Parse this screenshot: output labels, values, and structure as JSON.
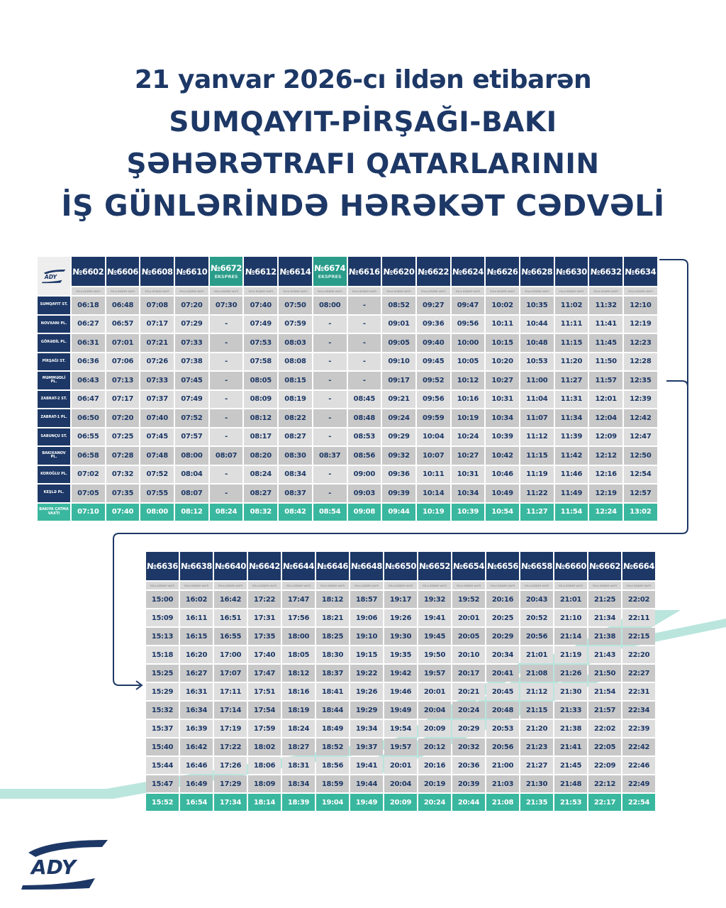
{
  "title": {
    "line1": "21 yanvar 2026-cı ildən etibarən",
    "line2": "SUMQAYIT-PİRŞAĞI-BAKI",
    "line3": "ŞƏHƏRƏTRAFI QATARLARININ",
    "line4": "İŞ GÜNLƏRİNDƏ HƏRƏKƏT CƏDVƏLİ"
  },
  "logo_text": "ADY",
  "colors": {
    "navy": "#1d3866",
    "teal": "#3ab79f",
    "express": "#2a9c8a"
  },
  "subheader": "YOLA DÜŞMƏ VAXTI",
  "express_label": "EKSPRES",
  "stations": [
    "SUMQAYIT ST.",
    "NOVXANI PL.",
    "GÖRƏDİL PL.",
    "PİRŞAĞI ST.",
    "MƏMMƏDLİ PL.",
    "ZABRAT-2 ST.",
    "ZABRAT-1 PL.",
    "SABUNÇU ST.",
    "BAKIXANOV PL.",
    "KOROĞLU PL.",
    "KEŞLƏ PL.",
    "BAKIYA ÇATMA VAXTI"
  ],
  "table1": {
    "trains": [
      {
        "no": "№6602",
        "express": false,
        "times": [
          "06:18",
          "06:27",
          "06:31",
          "06:36",
          "06:43",
          "06:47",
          "06:50",
          "06:55",
          "06:58",
          "07:02",
          "07:05",
          "07:10"
        ]
      },
      {
        "no": "№6606",
        "express": false,
        "times": [
          "06:48",
          "06:57",
          "07:01",
          "07:06",
          "07:13",
          "07:17",
          "07:20",
          "07:25",
          "07:28",
          "07:32",
          "07:35",
          "07:40"
        ]
      },
      {
        "no": "№6608",
        "express": false,
        "times": [
          "07:08",
          "07:17",
          "07:21",
          "07:26",
          "07:33",
          "07:37",
          "07:40",
          "07:45",
          "07:48",
          "07:52",
          "07:55",
          "08:00"
        ]
      },
      {
        "no": "№6610",
        "express": false,
        "times": [
          "07:20",
          "07:29",
          "07:33",
          "07:38",
          "07:45",
          "07:49",
          "07:52",
          "07:57",
          "08:00",
          "08:04",
          "08:07",
          "08:12"
        ]
      },
      {
        "no": "№6672",
        "express": true,
        "times": [
          "07:30",
          "-",
          "-",
          "-",
          "-",
          "-",
          "-",
          "-",
          "08:07",
          "-",
          "-",
          "08:24"
        ]
      },
      {
        "no": "№6612",
        "express": false,
        "times": [
          "07:40",
          "07:49",
          "07:53",
          "07:58",
          "08:05",
          "08:09",
          "08:12",
          "08:17",
          "08:20",
          "08:24",
          "08:27",
          "08:32"
        ]
      },
      {
        "no": "№6614",
        "express": false,
        "times": [
          "07:50",
          "07:59",
          "08:03",
          "08:08",
          "08:15",
          "08:19",
          "08:22",
          "08:27",
          "08:30",
          "08:34",
          "08:37",
          "08:42"
        ]
      },
      {
        "no": "№6674",
        "express": true,
        "times": [
          "08:00",
          "-",
          "-",
          "-",
          "-",
          "-",
          "-",
          "-",
          "08:37",
          "-",
          "-",
          "08:54"
        ]
      },
      {
        "no": "№6616",
        "express": false,
        "times": [
          "-",
          "-",
          "-",
          "-",
          "-",
          "08:45",
          "08:48",
          "08:53",
          "08:56",
          "09:00",
          "09:03",
          "09:08"
        ]
      },
      {
        "no": "№6620",
        "express": false,
        "times": [
          "08:52",
          "09:01",
          "09:05",
          "09:10",
          "09:17",
          "09:21",
          "09:24",
          "09:29",
          "09:32",
          "09:36",
          "09:39",
          "09:44"
        ]
      },
      {
        "no": "№6622",
        "express": false,
        "times": [
          "09:27",
          "09:36",
          "09:40",
          "09:45",
          "09:52",
          "09:56",
          "09:59",
          "10:04",
          "10:07",
          "10:11",
          "10:14",
          "10:19"
        ]
      },
      {
        "no": "№6624",
        "express": false,
        "times": [
          "09:47",
          "09:56",
          "10:00",
          "10:05",
          "10:12",
          "10:16",
          "10:19",
          "10:24",
          "10:27",
          "10:31",
          "10:34",
          "10:39"
        ]
      },
      {
        "no": "№6626",
        "express": false,
        "times": [
          "10:02",
          "10:11",
          "10:15",
          "10:20",
          "10:27",
          "10:31",
          "10:34",
          "10:39",
          "10:42",
          "10:46",
          "10:49",
          "10:54"
        ]
      },
      {
        "no": "№6628",
        "express": false,
        "times": [
          "10:35",
          "10:44",
          "10:48",
          "10:53",
          "11:00",
          "11:04",
          "11:07",
          "11:12",
          "11:15",
          "11:19",
          "11:22",
          "11:27"
        ]
      },
      {
        "no": "№6630",
        "express": false,
        "times": [
          "11:02",
          "11:11",
          "11:15",
          "11:20",
          "11:27",
          "11:31",
          "11:34",
          "11:39",
          "11:42",
          "11:46",
          "11:49",
          "11:54"
        ]
      },
      {
        "no": "№6632",
        "express": false,
        "times": [
          "11:32",
          "11:41",
          "11:45",
          "11:50",
          "11:57",
          "12:01",
          "12:04",
          "12:09",
          "12:12",
          "12:16",
          "12:19",
          "12:24"
        ]
      },
      {
        "no": "№6634",
        "express": false,
        "times": [
          "12:10",
          "12:19",
          "12:23",
          "12:28",
          "12:35",
          "12:39",
          "12:42",
          "12:47",
          "12:50",
          "12:54",
          "12:57",
          "13:02"
        ]
      }
    ]
  },
  "table2": {
    "trains": [
      {
        "no": "№6636",
        "times": [
          "15:00",
          "15:09",
          "15:13",
          "15:18",
          "15:25",
          "15:29",
          "15:32",
          "15:37",
          "15:40",
          "15:44",
          "15:47",
          "15:52"
        ]
      },
      {
        "no": "№6638",
        "times": [
          "16:02",
          "16:11",
          "16:15",
          "16:20",
          "16:27",
          "16:31",
          "16:34",
          "16:39",
          "16:42",
          "16:46",
          "16:49",
          "16:54"
        ]
      },
      {
        "no": "№6640",
        "times": [
          "16:42",
          "16:51",
          "16:55",
          "17:00",
          "17:07",
          "17:11",
          "17:14",
          "17:19",
          "17:22",
          "17:26",
          "17:29",
          "17:34"
        ]
      },
      {
        "no": "№6642",
        "times": [
          "17:22",
          "17:31",
          "17:35",
          "17:40",
          "17:47",
          "17:51",
          "17:54",
          "17:59",
          "18:02",
          "18:06",
          "18:09",
          "18:14"
        ]
      },
      {
        "no": "№6644",
        "times": [
          "17:47",
          "17:56",
          "18:00",
          "18:05",
          "18:12",
          "18:16",
          "18:19",
          "18:24",
          "18:27",
          "18:31",
          "18:34",
          "18:39"
        ]
      },
      {
        "no": "№6646",
        "times": [
          "18:12",
          "18:21",
          "18:25",
          "18:30",
          "18:37",
          "18:41",
          "18:44",
          "18:49",
          "18:52",
          "18:56",
          "18:59",
          "19:04"
        ]
      },
      {
        "no": "№6648",
        "times": [
          "18:57",
          "19:06",
          "19:10",
          "19:15",
          "19:22",
          "19:26",
          "19:29",
          "19:34",
          "19:37",
          "19:41",
          "19:44",
          "19:49"
        ]
      },
      {
        "no": "№6650",
        "times": [
          "19:17",
          "19:26",
          "19:30",
          "19:35",
          "19:42",
          "19:46",
          "19:49",
          "19:54",
          "19:57",
          "20:01",
          "20:04",
          "20:09"
        ]
      },
      {
        "no": "№6652",
        "times": [
          "19:32",
          "19:41",
          "19:45",
          "19:50",
          "19:57",
          "20:01",
          "20:04",
          "20:09",
          "20:12",
          "20:16",
          "20:19",
          "20:24"
        ]
      },
      {
        "no": "№6654",
        "times": [
          "19:52",
          "20:01",
          "20:05",
          "20:10",
          "20:17",
          "20:21",
          "20:24",
          "20:29",
          "20:32",
          "20:36",
          "20:39",
          "20:44"
        ]
      },
      {
        "no": "№6656",
        "times": [
          "20:16",
          "20:25",
          "20:29",
          "20:34",
          "20:41",
          "20:45",
          "20:48",
          "20:53",
          "20:56",
          "21:00",
          "21:03",
          "21:08"
        ]
      },
      {
        "no": "№6658",
        "times": [
          "20:43",
          "20:52",
          "20:56",
          "21:01",
          "21:08",
          "21:12",
          "21:15",
          "21:20",
          "21:23",
          "21:27",
          "21:30",
          "21:35"
        ]
      },
      {
        "no": "№6660",
        "times": [
          "21:01",
          "21:10",
          "21:14",
          "21:19",
          "21:26",
          "21:30",
          "21:33",
          "21:38",
          "21:41",
          "21:45",
          "21:48",
          "21:53"
        ]
      },
      {
        "no": "№6662",
        "times": [
          "21:25",
          "21:34",
          "21:38",
          "21:43",
          "21:50",
          "21:54",
          "21:57",
          "22:02",
          "22:05",
          "22:09",
          "22:12",
          "22:17"
        ]
      },
      {
        "no": "№6664",
        "times": [
          "22:02",
          "22:11",
          "22:15",
          "22:20",
          "22:27",
          "22:31",
          "22:34",
          "22:39",
          "22:42",
          "22:46",
          "22:49",
          "22:54"
        ]
      }
    ]
  }
}
